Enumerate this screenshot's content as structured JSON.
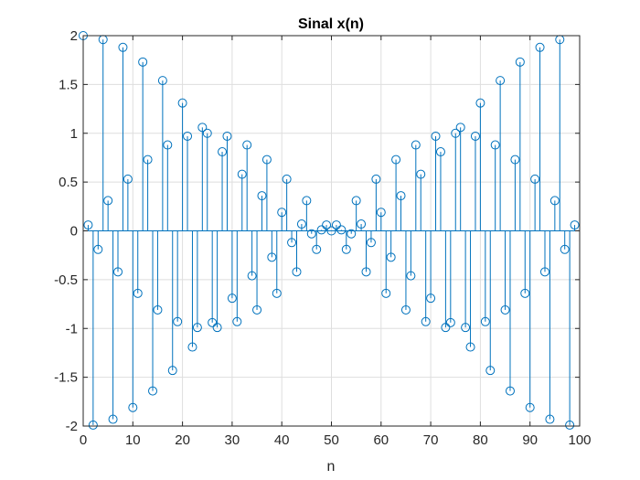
{
  "chart_data": {
    "type": "stem",
    "title": "Sinal x(n)",
    "xlabel": "n",
    "ylabel": "",
    "xlim": [
      0,
      100
    ],
    "ylim": [
      -2,
      2
    ],
    "grid": true,
    "legend": "none",
    "colors": {
      "stem": "#0072BD",
      "grid": "#dedede",
      "axis": "#262626"
    },
    "xticks": [
      "0",
      "10",
      "20",
      "30",
      "40",
      "50",
      "60",
      "70",
      "80",
      "90",
      "100"
    ],
    "yticks": [
      "2",
      "1.5",
      "1",
      "0.5",
      "0",
      "-0.5",
      "-1",
      "-1.5",
      "-2"
    ],
    "x": [
      0,
      1,
      2,
      3,
      4,
      5,
      6,
      7,
      8,
      9,
      10,
      11,
      12,
      13,
      14,
      15,
      16,
      17,
      18,
      19,
      20,
      21,
      22,
      23,
      24,
      25,
      26,
      27,
      28,
      29,
      30,
      31,
      32,
      33,
      34,
      35,
      36,
      37,
      38,
      39,
      40,
      41,
      42,
      43,
      44,
      45,
      46,
      47,
      48,
      49,
      50,
      51,
      52,
      53,
      54,
      55,
      56,
      57,
      58,
      59,
      60,
      61,
      62,
      63,
      64,
      65,
      66,
      67,
      68,
      69,
      70,
      71,
      72,
      73,
      74,
      75,
      76,
      77,
      78,
      79,
      80,
      81,
      82,
      83,
      84,
      85,
      86,
      87,
      88,
      89,
      90,
      91,
      92,
      93,
      94,
      95,
      96,
      97,
      98,
      99
    ],
    "values": [
      2.0,
      0.06,
      -1.99,
      -0.19,
      1.96,
      0.31,
      -1.93,
      -0.42,
      1.88,
      0.53,
      -1.81,
      -0.64,
      1.73,
      0.73,
      -1.64,
      -0.81,
      1.54,
      0.88,
      -1.43,
      -0.93,
      1.31,
      0.97,
      -1.19,
      -0.99,
      1.06,
      1.0,
      -0.94,
      -0.99,
      0.81,
      0.97,
      -0.69,
      -0.93,
      0.58,
      0.88,
      -0.46,
      -0.81,
      0.36,
      0.73,
      -0.27,
      -0.64,
      0.19,
      0.53,
      -0.12,
      -0.42,
      0.07,
      0.31,
      -0.03,
      -0.19,
      0.01,
      0.06,
      0.0,
      0.06,
      0.01,
      -0.19,
      -0.03,
      0.31,
      0.07,
      -0.42,
      -0.12,
      0.53,
      0.19,
      -0.64,
      -0.27,
      0.73,
      0.36,
      -0.81,
      -0.46,
      0.88,
      0.58,
      -0.93,
      -0.69,
      0.97,
      0.81,
      -0.99,
      -0.94,
      1.0,
      1.06,
      -0.99,
      -1.19,
      0.97,
      1.31,
      -0.93,
      -1.43,
      0.88,
      1.54,
      -0.81,
      -1.64,
      0.73,
      1.73,
      -0.64,
      -1.81,
      0.53,
      1.88,
      -0.42,
      -1.93,
      0.31,
      1.96,
      -0.19,
      -1.99,
      0.06
    ]
  }
}
